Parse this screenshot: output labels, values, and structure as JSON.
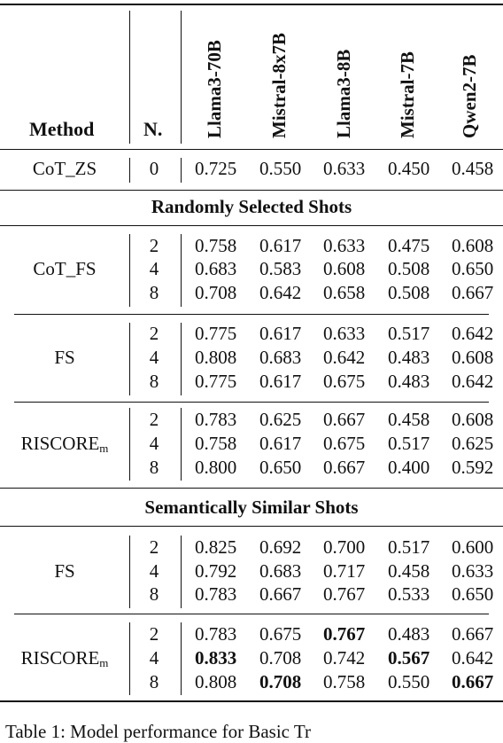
{
  "header": {
    "method_label": "Method",
    "n_label": "N.",
    "models": [
      "Llama3-70B",
      "Mistral-8x7B",
      "Llama3-8B",
      "Mistral-7B",
      "Qwen2-7B"
    ]
  },
  "zero_shot_row": {
    "method": "CoT_ZS",
    "n": "0",
    "values": [
      "0.725",
      "0.550",
      "0.633",
      "0.450",
      "0.458"
    ]
  },
  "sections": [
    {
      "title": "Randomly Selected Shots",
      "groups": [
        {
          "method": "CoT_FS",
          "method_sub": "",
          "rows": [
            {
              "n": "2",
              "values": [
                "0.758",
                "0.617",
                "0.633",
                "0.475",
                "0.608"
              ],
              "bold": []
            },
            {
              "n": "4",
              "values": [
                "0.683",
                "0.583",
                "0.608",
                "0.508",
                "0.650"
              ],
              "bold": []
            },
            {
              "n": "8",
              "values": [
                "0.708",
                "0.642",
                "0.658",
                "0.508",
                "0.667"
              ],
              "bold": []
            }
          ]
        },
        {
          "method": "FS",
          "method_sub": "",
          "rows": [
            {
              "n": "2",
              "values": [
                "0.775",
                "0.617",
                "0.633",
                "0.517",
                "0.642"
              ],
              "bold": []
            },
            {
              "n": "4",
              "values": [
                "0.808",
                "0.683",
                "0.642",
                "0.483",
                "0.608"
              ],
              "bold": []
            },
            {
              "n": "8",
              "values": [
                "0.775",
                "0.617",
                "0.675",
                "0.483",
                "0.642"
              ],
              "bold": []
            }
          ]
        },
        {
          "method": "RISCORE",
          "method_sub": "m",
          "rows": [
            {
              "n": "2",
              "values": [
                "0.783",
                "0.625",
                "0.667",
                "0.458",
                "0.608"
              ],
              "bold": []
            },
            {
              "n": "4",
              "values": [
                "0.758",
                "0.617",
                "0.675",
                "0.517",
                "0.625"
              ],
              "bold": []
            },
            {
              "n": "8",
              "values": [
                "0.800",
                "0.650",
                "0.667",
                "0.400",
                "0.592"
              ],
              "bold": []
            }
          ]
        }
      ]
    },
    {
      "title": "Semantically Similar Shots",
      "groups": [
        {
          "method": "FS",
          "method_sub": "",
          "rows": [
            {
              "n": "2",
              "values": [
                "0.825",
                "0.692",
                "0.700",
                "0.517",
                "0.600"
              ],
              "bold": []
            },
            {
              "n": "4",
              "values": [
                "0.792",
                "0.683",
                "0.717",
                "0.458",
                "0.633"
              ],
              "bold": []
            },
            {
              "n": "8",
              "values": [
                "0.783",
                "0.667",
                "0.767",
                "0.533",
                "0.650"
              ],
              "bold": []
            }
          ]
        },
        {
          "method": "RISCORE",
          "method_sub": "m",
          "rows": [
            {
              "n": "2",
              "values": [
                "0.783",
                "0.675",
                "0.767",
                "0.483",
                "0.667"
              ],
              "bold": [
                2
              ]
            },
            {
              "n": "4",
              "values": [
                "0.833",
                "0.708",
                "0.742",
                "0.567",
                "0.642"
              ],
              "bold": [
                0,
                3
              ]
            },
            {
              "n": "8",
              "values": [
                "0.808",
                "0.708",
                "0.758",
                "0.550",
                "0.667"
              ],
              "bold": [
                1,
                4
              ]
            }
          ]
        }
      ]
    }
  ],
  "caption": "Table 1: Model performance for Basic Tr"
}
